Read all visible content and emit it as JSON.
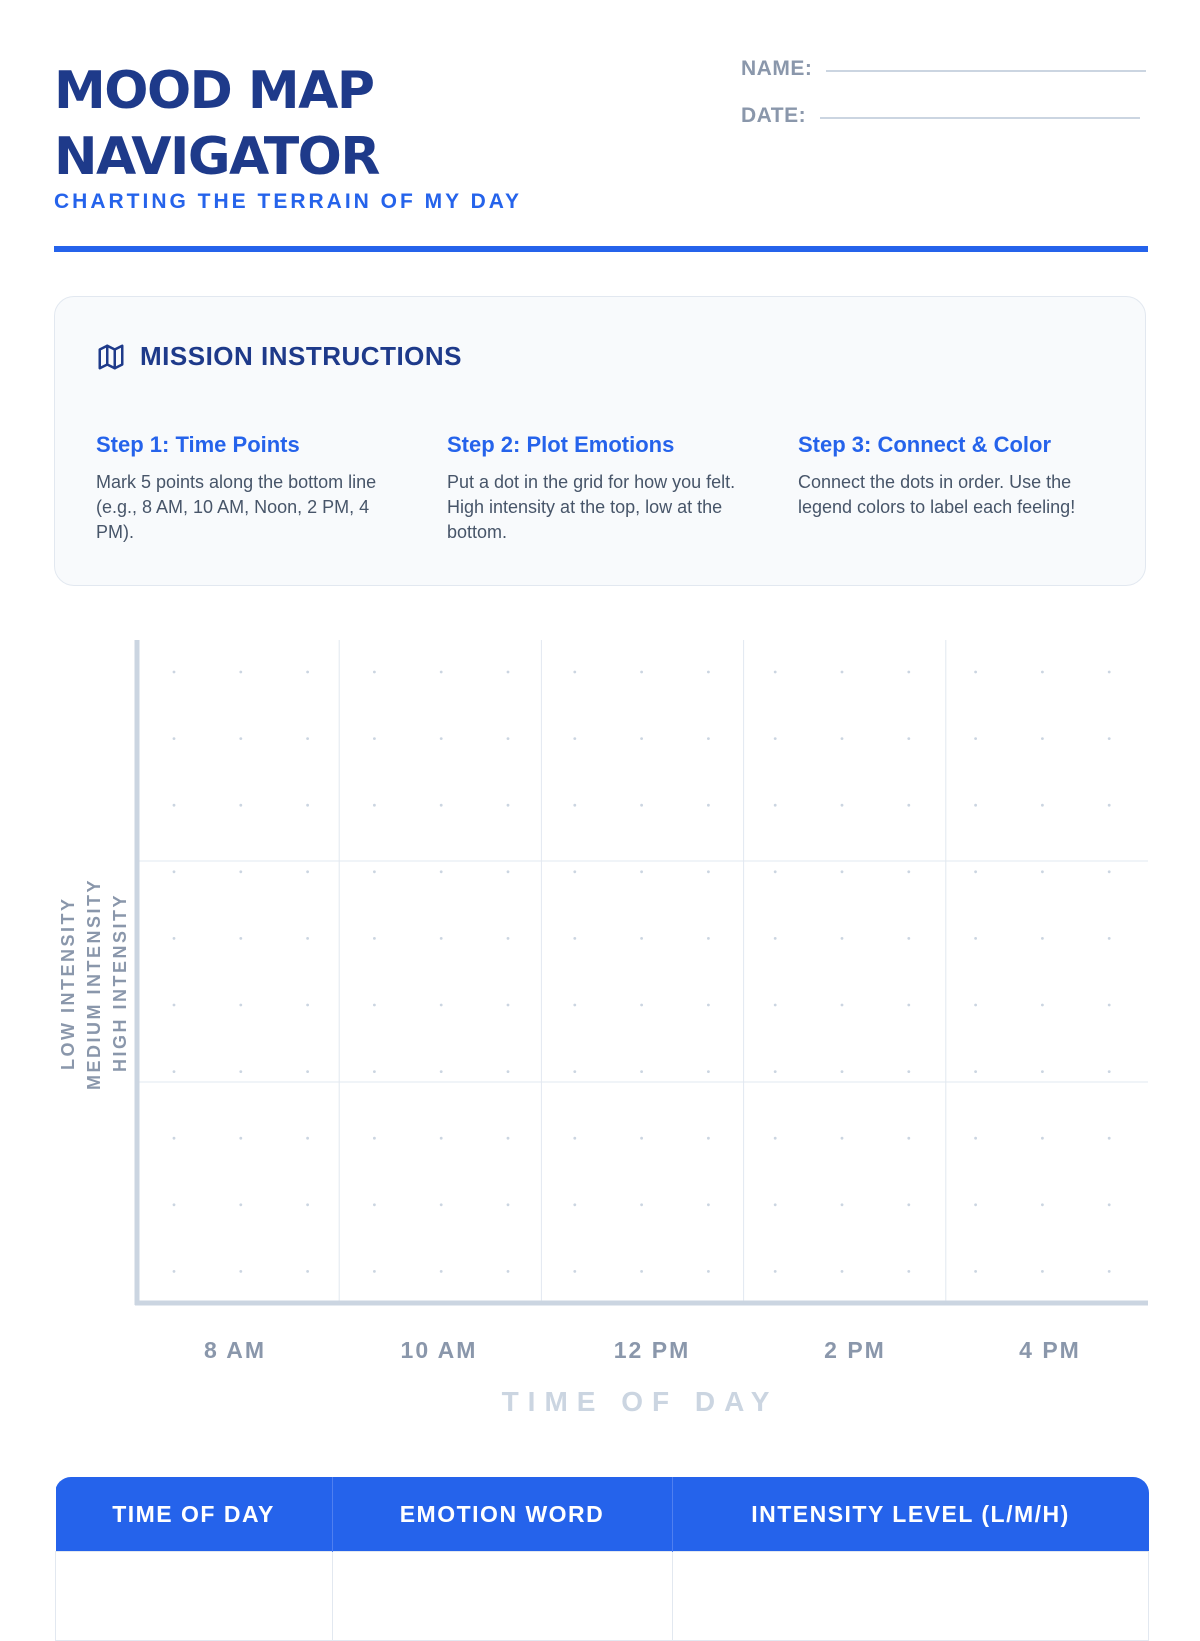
{
  "header": {
    "title_line1": "MOOD MAP",
    "title_line2": "NAVIGATOR",
    "subtitle": "CHARTING THE TERRAIN OF MY DAY",
    "name_label": "NAME:",
    "date_label": "DATE:"
  },
  "instructions": {
    "icon": "map-icon",
    "title": "MISSION INSTRUCTIONS",
    "steps": [
      {
        "title": "Step 1: Time Points",
        "text": "Mark 5 points along the bottom line (e.g., 8 AM, 10 AM, Noon, 2 PM, 4 PM)."
      },
      {
        "title": "Step 2: Plot Emotions",
        "text": "Put a dot in the grid for how you felt. High intensity at the top, low at the bottom."
      },
      {
        "title": "Step 3: Connect & Color",
        "text": "Connect the dots in order. Use the legend colors to label each feeling!"
      }
    ]
  },
  "chart_data": {
    "type": "scatter",
    "x_title": "TIME OF DAY",
    "x_ticks": [
      "8 AM",
      "10 AM",
      "12 PM",
      "2 PM",
      "4 PM"
    ],
    "y_labels": [
      "LOW INTENSITY",
      "MEDIUM INTENSITY",
      "HIGH INTENSITY"
    ],
    "series": [],
    "grid": true,
    "axis_color": "#cbd5e1",
    "grid_color": "#e2e8f0",
    "dot_color": "#cbd5e1"
  },
  "log_table": {
    "columns": [
      "TIME OF DAY",
      "EMOTION WORD",
      "INTENSITY LEVEL (L/M/H)"
    ]
  },
  "colors": {
    "navy": "#1e3a8a",
    "accent": "#2563eb",
    "muted": "#8a97ab",
    "panel_bg": "#f8fafc"
  }
}
